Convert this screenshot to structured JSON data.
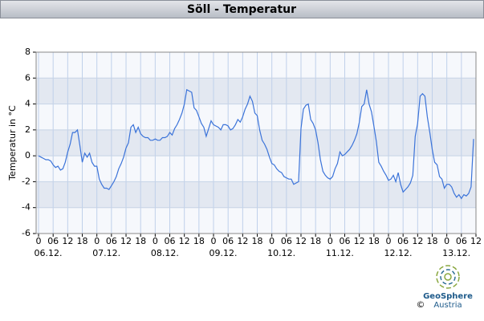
{
  "chart_data": {
    "type": "line",
    "title": "Söll - Temperatur",
    "ylabel": "Temperatur in °C",
    "x": [
      0,
      1,
      2,
      3,
      4,
      5,
      6,
      7,
      8,
      9,
      10,
      11,
      12,
      13,
      14,
      15,
      16,
      17,
      18,
      19,
      20,
      21,
      22,
      23,
      24,
      25,
      26,
      27,
      28,
      29,
      30,
      31,
      32,
      33,
      34,
      35,
      36,
      37,
      38,
      39,
      40,
      41,
      42,
      43,
      44,
      45,
      46,
      47,
      48,
      49,
      50,
      51,
      52,
      53,
      54,
      55,
      56,
      57,
      58,
      59,
      60,
      61,
      62,
      63,
      64,
      65,
      66,
      67,
      68,
      69,
      70,
      71,
      72,
      73,
      74,
      75,
      76,
      77,
      78,
      79,
      80,
      81,
      82,
      83,
      84,
      85,
      86,
      87,
      88,
      89,
      90,
      91,
      92,
      93,
      94,
      95,
      96,
      97,
      98,
      99,
      100,
      101,
      102,
      103,
      104,
      105,
      106,
      107,
      108,
      109,
      110,
      111,
      112,
      113,
      114,
      115,
      116,
      117,
      118,
      119,
      120,
      121,
      122,
      123,
      124,
      125,
      126,
      127,
      128,
      129,
      130,
      131,
      132,
      133,
      134,
      135,
      136,
      137,
      138,
      139,
      140,
      141,
      142,
      143,
      144,
      145,
      146,
      147,
      148,
      149,
      150,
      151,
      152,
      153,
      154,
      155,
      156,
      157,
      158,
      159,
      160,
      161,
      162,
      163,
      164,
      165,
      166,
      167,
      168,
      169,
      170,
      171,
      172,
      173,
      174,
      175,
      176,
      177,
      178,
      179
    ],
    "series": [
      {
        "color": "#3b73d9",
        "values": [
          0,
          -0.1,
          -0.2,
          -0.3,
          -0.3,
          -0.4,
          -0.7,
          -0.9,
          -0.8,
          -1.1,
          -1.0,
          -0.5,
          0.3,
          0.9,
          1.8,
          1.8,
          2.0,
          0.8,
          -0.5,
          0.2,
          -0.1,
          0.2,
          -0.5,
          -0.8,
          -0.8,
          -1.8,
          -2.2,
          -2.5,
          -2.5,
          -2.6,
          -2.3,
          -2.0,
          -1.6,
          -1.0,
          -0.6,
          -0.1,
          0.6,
          1.0,
          2.2,
          2.4,
          1.8,
          2.2,
          1.7,
          1.5,
          1.4,
          1.4,
          1.2,
          1.2,
          1.3,
          1.2,
          1.2,
          1.4,
          1.4,
          1.5,
          1.8,
          1.6,
          2.1,
          2.4,
          2.8,
          3.3,
          4.0,
          5.1,
          5.0,
          4.9,
          3.7,
          3.5,
          3.0,
          2.5,
          2.2,
          1.5,
          2.1,
          2.7,
          2.4,
          2.3,
          2.2,
          2.0,
          2.4,
          2.4,
          2.3,
          2.0,
          2.1,
          2.4,
          2.8,
          2.6,
          3.0,
          3.6,
          4.0,
          4.6,
          4.2,
          3.3,
          3.1,
          2.0,
          1.2,
          0.9,
          0.5,
          -0.1,
          -0.6,
          -0.7,
          -1.0,
          -1.2,
          -1.3,
          -1.6,
          -1.7,
          -1.8,
          -1.8,
          -2.2,
          -2.1,
          -2.0,
          2.1,
          3.6,
          3.9,
          4.0,
          2.8,
          2.5,
          2.0,
          1.0,
          -0.3,
          -1.2,
          -1.5,
          -1.7,
          -1.8,
          -1.6,
          -1.0,
          -0.6,
          0.3,
          0.0,
          0.1,
          0.3,
          0.5,
          0.8,
          1.2,
          1.7,
          2.6,
          3.8,
          4.0,
          5.1,
          4.0,
          3.4,
          2.3,
          1.1,
          -0.5,
          -0.8,
          -1.2,
          -1.5,
          -1.9,
          -1.8,
          -1.5,
          -2.0,
          -1.3,
          -2.2,
          -2.8,
          -2.6,
          -2.4,
          -2.1,
          -1.5,
          1.5,
          2.5,
          4.6,
          4.8,
          4.6,
          3.0,
          1.8,
          0.5,
          -0.5,
          -0.7,
          -1.6,
          -1.8,
          -2.5,
          -2.2,
          -2.2,
          -2.4,
          -2.9,
          -3.2,
          -3.0,
          -3.3,
          -3.0,
          -3.1,
          -2.9,
          -2.4,
          1.3
        ]
      }
    ],
    "xlim": [
      -1,
      180
    ],
    "xticks": [
      0,
      {
        "value": 6,
        "label": "06"
      },
      12,
      18,
      {
        "value": 24,
        "label": "0"
      },
      {
        "value": 30,
        "label": "06"
      },
      {
        "value": 36,
        "label": "12"
      },
      {
        "value": 42,
        "label": "18"
      },
      {
        "value": 48,
        "label": "0"
      },
      {
        "value": 54,
        "label": "06"
      },
      {
        "value": 60,
        "label": "12"
      },
      {
        "value": 66,
        "label": "18"
      },
      {
        "value": 72,
        "label": "0"
      },
      {
        "value": 78,
        "label": "06"
      },
      {
        "value": 84,
        "label": "12"
      },
      {
        "value": 90,
        "label": "18"
      },
      {
        "value": 96,
        "label": "0"
      },
      {
        "value": 102,
        "label": "06"
      },
      {
        "value": 108,
        "label": "12"
      },
      {
        "value": 114,
        "label": "18"
      },
      {
        "value": 120,
        "label": "0"
      },
      {
        "value": 126,
        "label": "06"
      },
      {
        "value": 132,
        "label": "12"
      },
      {
        "value": 138,
        "label": "18"
      },
      {
        "value": 144,
        "label": "0"
      },
      {
        "value": 150,
        "label": "06"
      },
      {
        "value": 156,
        "label": "12"
      },
      {
        "value": 162,
        "label": "18"
      },
      {
        "value": 168,
        "label": "0"
      },
      {
        "value": 174,
        "label": "06"
      },
      {
        "value": 180,
        "label": "12"
      }
    ],
    "day_ticks": [
      {
        "value": 0,
        "label": "06.12."
      },
      {
        "value": 24,
        "label": "07.12."
      },
      {
        "value": 48,
        "label": "08.12."
      },
      {
        "value": 72,
        "label": "09.12."
      },
      {
        "value": 96,
        "label": "10.12."
      },
      {
        "value": 120,
        "label": "11.12."
      },
      {
        "value": 144,
        "label": "12.12."
      },
      {
        "value": 168,
        "label": "13.12."
      }
    ],
    "ylim": [
      -6,
      8
    ],
    "yticks": [
      -6,
      -4,
      -2,
      0,
      2,
      4,
      6,
      8
    ],
    "grid": true,
    "logo": {
      "name": "GeoSphere",
      "sub": "Austria",
      "copyright": "©"
    }
  }
}
